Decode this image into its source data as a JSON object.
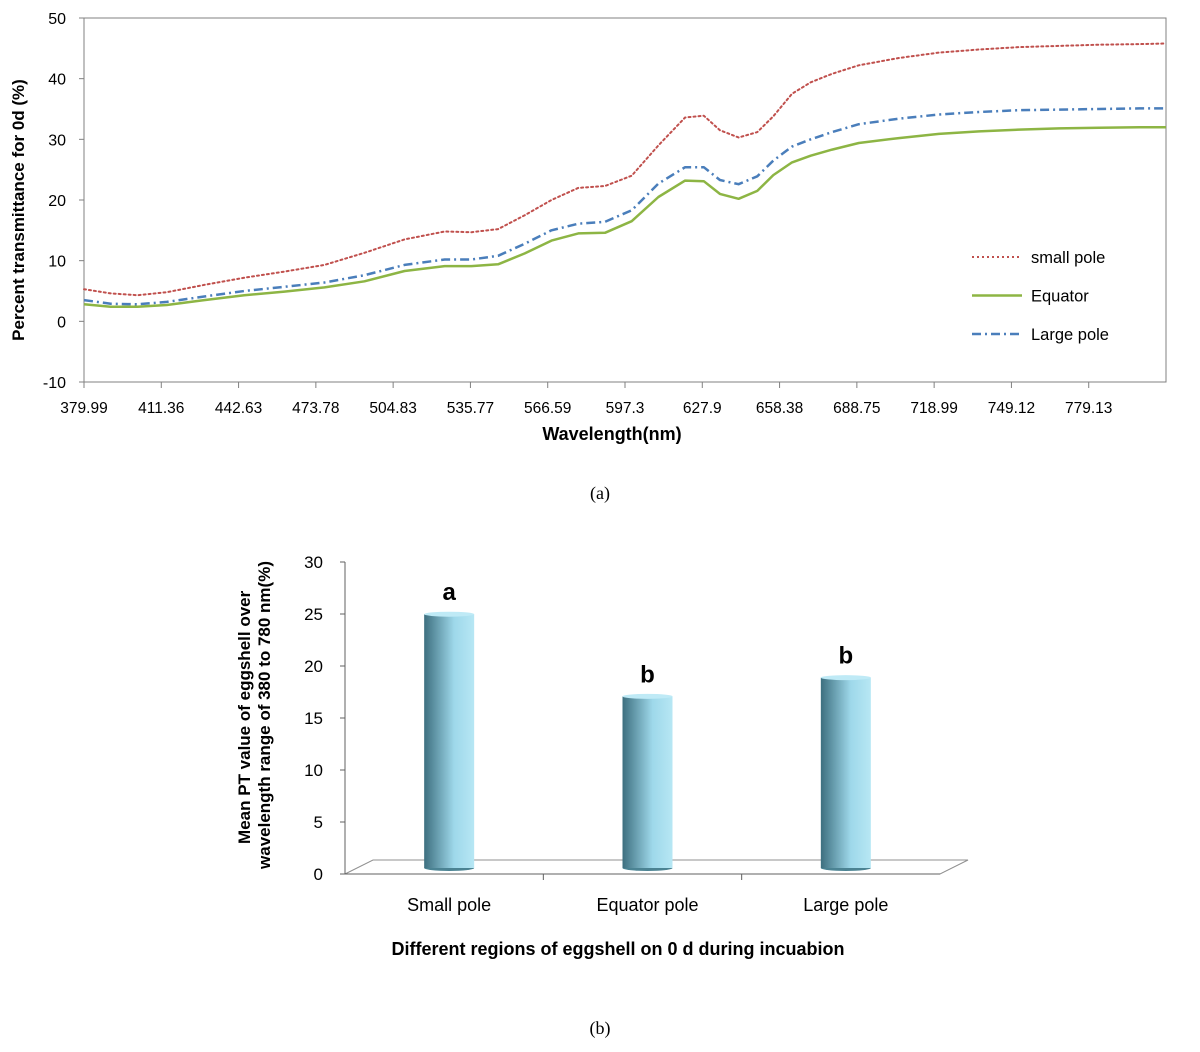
{
  "captions": {
    "a": "(a)",
    "b": "(b)"
  },
  "colors": {
    "small_pole": "#C0504D",
    "equator": "#8DB544",
    "large_pole": "#4A7EBB",
    "bar_light": "#B7E7F4",
    "bar_dark": "#3D6F7F"
  },
  "chart_data": [
    {
      "type": "line",
      "title": "",
      "xlabel": "Wavelength(nm)",
      "ylabel": "Percent transmittance for 0d (%)",
      "ylim": [
        -10,
        50
      ],
      "yticks": [
        -10,
        0,
        10,
        20,
        30,
        40,
        50
      ],
      "xlim": [
        379.99,
        785
      ],
      "xtick_labels": [
        "379.99",
        "411.36",
        "442.63",
        "473.78",
        "504.83",
        "535.77",
        "566.59",
        "597.3",
        "627.9",
        "658.38",
        "688.75",
        "718.99",
        "749.12",
        "779.13"
      ],
      "grid": false,
      "legend_position": "right",
      "series": [
        {
          "name": "small pole",
          "style": "dotted",
          "x": [
            379.99,
            390,
            400,
            411,
            425,
            440,
            455,
            470,
            485,
            500,
            515,
            525,
            535,
            545,
            555,
            565,
            575,
            585,
            595,
            605,
            612,
            618,
            625,
            632,
            638,
            645,
            652,
            660,
            670,
            685,
            700,
            715,
            730,
            745,
            760,
            775,
            785
          ],
          "y": [
            5.3,
            4.6,
            4.3,
            4.8,
            6.0,
            7.2,
            8.2,
            9.3,
            11.3,
            13.5,
            14.8,
            14.7,
            15.2,
            17.5,
            20.0,
            22.0,
            22.3,
            24.0,
            29.0,
            33.6,
            33.9,
            31.5,
            30.3,
            31.2,
            33.8,
            37.5,
            39.4,
            40.8,
            42.2,
            43.4,
            44.3,
            44.8,
            45.2,
            45.4,
            45.6,
            45.7,
            45.8
          ]
        },
        {
          "name": "Equator",
          "style": "solid",
          "x": [
            379.99,
            390,
            400,
            411,
            425,
            440,
            455,
            470,
            485,
            500,
            515,
            525,
            535,
            545,
            555,
            565,
            575,
            585,
            595,
            605,
            612,
            618,
            625,
            632,
            638,
            645,
            652,
            660,
            670,
            685,
            700,
            715,
            730,
            745,
            760,
            775,
            785
          ],
          "y": [
            2.8,
            2.4,
            2.4,
            2.7,
            3.5,
            4.3,
            4.9,
            5.6,
            6.6,
            8.3,
            9.1,
            9.1,
            9.4,
            11.2,
            13.3,
            14.5,
            14.6,
            16.5,
            20.5,
            23.2,
            23.1,
            21.0,
            20.2,
            21.5,
            24.1,
            26.2,
            27.3,
            28.3,
            29.4,
            30.2,
            30.9,
            31.3,
            31.6,
            31.8,
            31.9,
            32.0,
            32.0
          ]
        },
        {
          "name": "Large pole",
          "style": "dashdot",
          "x": [
            379.99,
            390,
            400,
            411,
            425,
            440,
            455,
            470,
            485,
            500,
            515,
            525,
            535,
            545,
            555,
            565,
            575,
            585,
            595,
            605,
            612,
            618,
            625,
            632,
            638,
            645,
            652,
            660,
            670,
            685,
            700,
            715,
            730,
            745,
            760,
            775,
            785
          ],
          "y": [
            3.5,
            2.9,
            2.8,
            3.2,
            4.1,
            5.0,
            5.7,
            6.4,
            7.6,
            9.3,
            10.2,
            10.2,
            10.8,
            12.8,
            15.0,
            16.1,
            16.4,
            18.3,
            22.7,
            25.4,
            25.4,
            23.3,
            22.6,
            23.9,
            26.5,
            28.8,
            30.0,
            31.2,
            32.5,
            33.4,
            34.1,
            34.5,
            34.8,
            34.9,
            35.0,
            35.1,
            35.1
          ]
        }
      ]
    },
    {
      "type": "bar",
      "title": "",
      "xlabel": "Different regions of eggshell on 0 d during incuabion",
      "ylabel_lines": [
        "Mean PT value of eggshell over",
        "wavelength range of 380 to 780 nm(%)"
      ],
      "ylim": [
        0,
        30
      ],
      "yticks": [
        0,
        5,
        10,
        15,
        20,
        25,
        30
      ],
      "grid": false,
      "categories": [
        "Small pole",
        "Equator pole",
        "Large pole"
      ],
      "values": [
        24.5,
        16.6,
        18.4
      ],
      "significance_labels": [
        "a",
        "b",
        "b"
      ]
    }
  ]
}
